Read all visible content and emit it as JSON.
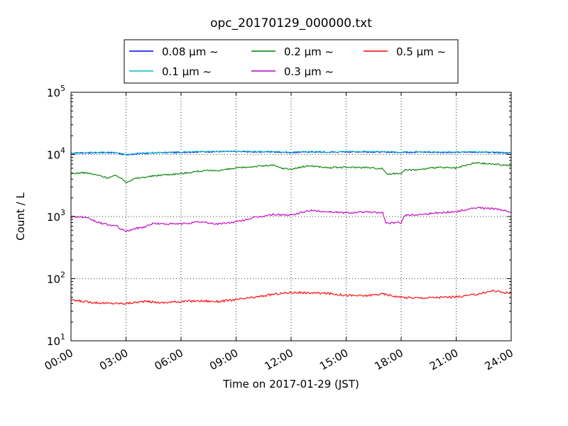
{
  "chart_data": {
    "type": "line",
    "title": "opc_20170129_000000.txt",
    "xlabel": "Time on 2017-01-29 (JST)",
    "ylabel": "Count / L",
    "yscale": "log",
    "ylim": [
      10,
      100000
    ],
    "xlim": [
      "00:00",
      "24:00"
    ],
    "grid": true,
    "legend_position": "top-center",
    "x_ticks": [
      "00:00",
      "03:00",
      "06:00",
      "09:00",
      "12:00",
      "15:00",
      "18:00",
      "21:00",
      "24:00"
    ],
    "y_ticks": [
      {
        "base": "10",
        "exp": "1"
      },
      {
        "base": "10",
        "exp": "2"
      },
      {
        "base": "10",
        "exp": "3"
      },
      {
        "base": "10",
        "exp": "4"
      },
      {
        "base": "10",
        "exp": "5"
      }
    ],
    "series": [
      {
        "name": "0.08 μm ~",
        "color": "#0000ff",
        "points": [
          [
            "00:00",
            10500
          ],
          [
            "01:00",
            10600
          ],
          [
            "02:00",
            10700
          ],
          [
            "02:30",
            10600
          ],
          [
            "03:00",
            9800
          ],
          [
            "04:00",
            10400
          ],
          [
            "05:00",
            10700
          ],
          [
            "06:00",
            10800
          ],
          [
            "07:00",
            11000
          ],
          [
            "08:00",
            11100
          ],
          [
            "09:00",
            11100
          ],
          [
            "10:00",
            11000
          ],
          [
            "11:00",
            11000
          ],
          [
            "12:00",
            10700
          ],
          [
            "13:00",
            11000
          ],
          [
            "14:00",
            10800
          ],
          [
            "15:00",
            11000
          ],
          [
            "16:00",
            11000
          ],
          [
            "17:00",
            10900
          ],
          [
            "18:00",
            10800
          ],
          [
            "19:00",
            10900
          ],
          [
            "20:00",
            10800
          ],
          [
            "21:00",
            10800
          ],
          [
            "22:00",
            10900
          ],
          [
            "23:00",
            10800
          ],
          [
            "24:00",
            10500
          ]
        ]
      },
      {
        "name": "0.1 μm ~",
        "color": "#00bfbf",
        "points": [
          [
            "00:00",
            10600
          ],
          [
            "01:00",
            10700
          ],
          [
            "02:00",
            10800
          ],
          [
            "02:30",
            10700
          ],
          [
            "03:00",
            10000
          ],
          [
            "04:00",
            10600
          ],
          [
            "05:00",
            10800
          ],
          [
            "06:00",
            10900
          ],
          [
            "07:00",
            11100
          ],
          [
            "08:00",
            11200
          ],
          [
            "09:00",
            11200
          ],
          [
            "10:00",
            11100
          ],
          [
            "11:00",
            11100
          ],
          [
            "12:00",
            10800
          ],
          [
            "13:00",
            11100
          ],
          [
            "14:00",
            10900
          ],
          [
            "15:00",
            11100
          ],
          [
            "16:00",
            11100
          ],
          [
            "17:00",
            11000
          ],
          [
            "18:00",
            10900
          ],
          [
            "19:00",
            11000
          ],
          [
            "20:00",
            10900
          ],
          [
            "21:00",
            10900
          ],
          [
            "22:00",
            11000
          ],
          [
            "23:00",
            10900
          ],
          [
            "24:00",
            10600
          ]
        ]
      },
      {
        "name": "0.2 μm ~",
        "color": "#008000",
        "points": [
          [
            "00:00",
            4900
          ],
          [
            "00:45",
            5100
          ],
          [
            "01:30",
            4600
          ],
          [
            "02:00",
            4200
          ],
          [
            "02:30",
            4600
          ],
          [
            "03:00",
            3600
          ],
          [
            "03:30",
            4100
          ],
          [
            "04:00",
            4300
          ],
          [
            "05:00",
            4700
          ],
          [
            "06:00",
            4900
          ],
          [
            "07:00",
            5400
          ],
          [
            "08:00",
            5500
          ],
          [
            "09:00",
            6000
          ],
          [
            "10:00",
            6400
          ],
          [
            "11:00",
            6700
          ],
          [
            "11:30",
            6000
          ],
          [
            "12:00",
            5800
          ],
          [
            "13:00",
            6600
          ],
          [
            "14:00",
            6100
          ],
          [
            "15:00",
            6200
          ],
          [
            "16:00",
            6200
          ],
          [
            "17:00",
            5900
          ],
          [
            "17:15",
            4800
          ],
          [
            "18:00",
            5000
          ],
          [
            "18:10",
            5600
          ],
          [
            "19:00",
            5700
          ],
          [
            "20:00",
            6200
          ],
          [
            "21:00",
            6000
          ],
          [
            "22:00",
            7300
          ],
          [
            "23:00",
            7000
          ],
          [
            "24:00",
            6600
          ]
        ]
      },
      {
        "name": "0.3 μm ~",
        "color": "#bf00bf",
        "points": [
          [
            "00:00",
            1000
          ],
          [
            "00:30",
            990
          ],
          [
            "01:00",
            920
          ],
          [
            "01:30",
            800
          ],
          [
            "02:00",
            740
          ],
          [
            "02:30",
            700
          ],
          [
            "02:45",
            620
          ],
          [
            "03:00",
            580
          ],
          [
            "03:30",
            640
          ],
          [
            "04:00",
            680
          ],
          [
            "04:30",
            780
          ],
          [
            "05:00",
            760
          ],
          [
            "06:00",
            760
          ],
          [
            "07:00",
            820
          ],
          [
            "08:00",
            760
          ],
          [
            "09:00",
            820
          ],
          [
            "10:00",
            960
          ],
          [
            "11:00",
            1080
          ],
          [
            "12:00",
            1050
          ],
          [
            "13:00",
            1250
          ],
          [
            "14:00",
            1200
          ],
          [
            "15:00",
            1150
          ],
          [
            "16:00",
            1180
          ],
          [
            "17:00",
            1150
          ],
          [
            "17:10",
            780
          ],
          [
            "18:00",
            800
          ],
          [
            "18:10",
            1050
          ],
          [
            "19:00",
            1080
          ],
          [
            "20:00",
            1150
          ],
          [
            "21:00",
            1200
          ],
          [
            "22:00",
            1380
          ],
          [
            "23:00",
            1350
          ],
          [
            "24:00",
            1180
          ]
        ]
      },
      {
        "name": "0.5 μm ~",
        "color": "#ff0000",
        "points": [
          [
            "00:00",
            45
          ],
          [
            "01:00",
            42
          ],
          [
            "02:00",
            40
          ],
          [
            "03:00",
            40
          ],
          [
            "04:00",
            43
          ],
          [
            "05:00",
            41
          ],
          [
            "06:00",
            43
          ],
          [
            "07:00",
            44
          ],
          [
            "08:00",
            43
          ],
          [
            "09:00",
            46
          ],
          [
            "10:00",
            50
          ],
          [
            "11:00",
            56
          ],
          [
            "12:00",
            60
          ],
          [
            "13:00",
            59
          ],
          [
            "14:00",
            58
          ],
          [
            "15:00",
            54
          ],
          [
            "16:00",
            53
          ],
          [
            "17:00",
            57
          ],
          [
            "18:00",
            50
          ],
          [
            "19:00",
            49
          ],
          [
            "20:00",
            50
          ],
          [
            "21:00",
            51
          ],
          [
            "22:00",
            55
          ],
          [
            "23:00",
            64
          ],
          [
            "24:00",
            58
          ]
        ]
      }
    ]
  }
}
